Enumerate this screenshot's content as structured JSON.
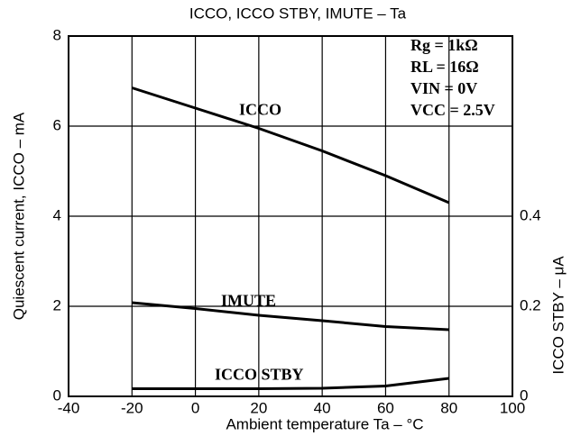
{
  "chart_data": {
    "type": "line",
    "title": "ICCO, ICCO STBY, IMUTE – Ta",
    "xlabel": "Ambient temperature Ta – °C",
    "ylabel": "Quiescent current, ICCO – mA",
    "y2label": "ICCO STBY – μA",
    "annotations": [
      "Rg = 1kΩ",
      "RL = 16Ω",
      "VIN = 0V",
      "VCC = 2.5V"
    ],
    "x": [
      -20,
      0,
      20,
      40,
      60,
      80
    ],
    "series": [
      {
        "name": "ICCO",
        "color": "#000000",
        "values": [
          6.85,
          6.4,
          5.95,
          5.45,
          4.9,
          4.3
        ]
      },
      {
        "name": "IMUTE",
        "color": "#000000",
        "values": [
          2.08,
          1.95,
          1.8,
          1.68,
          1.55,
          1.48
        ]
      },
      {
        "name": "ICCO STBY",
        "color": "#000000",
        "axis": "y2",
        "values": [
          0.017,
          0.017,
          0.017,
          0.018,
          0.023,
          0.04
        ]
      }
    ],
    "xlim": [
      -40,
      100
    ],
    "xticks": [
      -40,
      -20,
      0,
      20,
      40,
      60,
      80,
      100
    ],
    "ylim": [
      0,
      8
    ],
    "yticks": [
      0,
      2,
      4,
      6,
      8
    ],
    "y2lim": [
      0,
      0.8
    ],
    "y2ticks": [
      0,
      0.2,
      0.4
    ],
    "grid": true
  }
}
